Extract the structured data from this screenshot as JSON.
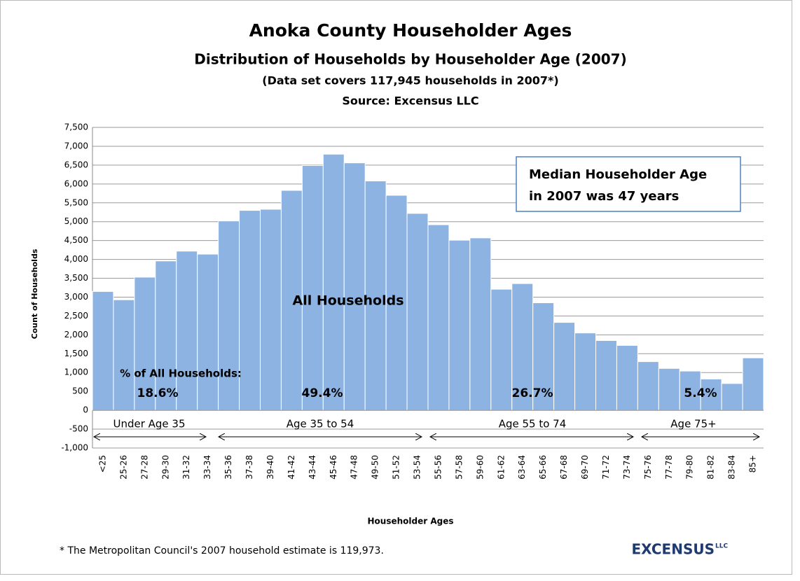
{
  "chart_data": {
    "type": "bar",
    "title": "Anoka County Householder Ages",
    "subtitle": "Distribution of Households  by Householder  Age (2007)",
    "note": "(Data set covers 117,945 households in 2007*)",
    "source": "Source: Excensus LLC",
    "x_label": "Householder Ages",
    "y_label": "Count of Households",
    "categories": [
      "<25",
      "25-26",
      "27-28",
      "29-30",
      "31-32",
      "33-34",
      "35-36",
      "37-38",
      "39-40",
      "41-42",
      "43-44",
      "45-46",
      "47-48",
      "49-50",
      "51-52",
      "53-54",
      "55-56",
      "57-58",
      "59-60",
      "61-62",
      "63-64",
      "65-66",
      "67-68",
      "69-70",
      "71-72",
      "73-74",
      "75-76",
      "77-78",
      "79-80",
      "81-82",
      "83-84",
      "85+"
    ],
    "values": [
      3150,
      2930,
      3530,
      3960,
      4220,
      4140,
      5020,
      5300,
      5330,
      5830,
      6490,
      6790,
      6560,
      6080,
      5700,
      5220,
      4920,
      4510,
      4570,
      3210,
      3360,
      2850,
      2330,
      2050,
      1850,
      1720,
      1290,
      1110,
      1040,
      830,
      710,
      1390
    ],
    "color": "#8db3e2",
    "ylim": [
      -1000,
      7500
    ],
    "yticks": [
      {
        "value": -1000,
        "label": "-1,000"
      },
      -500,
      0,
      500,
      {
        "value": 1000,
        "label": "1,000"
      },
      {
        "value": 1500,
        "label": "1,500"
      },
      {
        "value": 2000,
        "label": "2,000"
      },
      {
        "value": 2500,
        "label": "2,500"
      },
      {
        "value": 3000,
        "label": "3,000"
      },
      {
        "value": 3500,
        "label": "3,500"
      },
      {
        "value": 4000,
        "label": "4,000"
      },
      {
        "value": 4500,
        "label": "4,500"
      },
      {
        "value": 5000,
        "label": "5,000"
      },
      {
        "value": 5500,
        "label": "5,500"
      },
      {
        "value": 6000,
        "label": "6,000"
      },
      {
        "value": 6500,
        "label": "6,500"
      },
      {
        "value": 7000,
        "label": "7,000"
      },
      {
        "value": 7500,
        "label": "7,500"
      }
    ],
    "grid": true,
    "center_label": "All Households",
    "share_heading": "% of All Households:",
    "groups": [
      {
        "name": "Under Age 35",
        "share": 18.6,
        "share_label": "18.6%"
      },
      {
        "name": "Age 35 to 54",
        "share": 49.4,
        "share_label": "49.4%"
      },
      {
        "name": "Age 55 to 74",
        "share": 26.7,
        "share_label": "26.7%"
      },
      {
        "name": "Age 75+",
        "share": 5.4,
        "share_label": "5.4%"
      }
    ],
    "median_box": [
      "Median Householder Age",
      "in 2007 was 47 years"
    ],
    "footnote": "* The Metropolitan Council's 2007  household estimate is 119,973.",
    "logo": "EXCENSUS",
    "logo_suffix": "LLC"
  }
}
